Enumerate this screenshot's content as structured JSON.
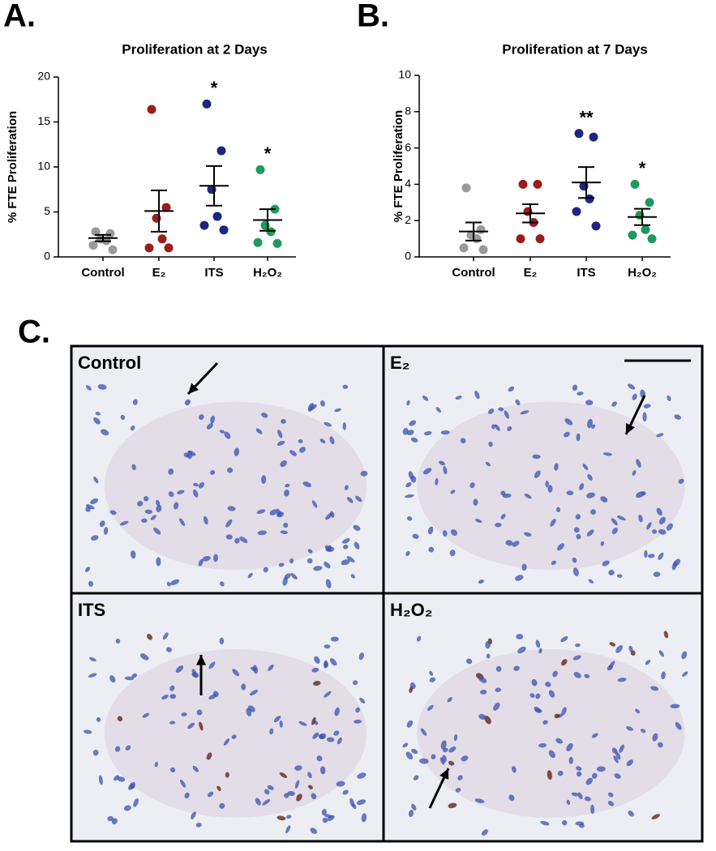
{
  "panel_labels": [
    "A.",
    "B.",
    "C."
  ],
  "chart_data": [
    {
      "type": "dot",
      "title": "Proliferation at 2 Days",
      "y_label": "% FTE Proliferation",
      "categories": [
        "Control",
        "E₂",
        "ITS",
        "H₂O₂"
      ],
      "colors": [
        "#9a9a9a",
        "#9b1c1c",
        "#1c2580",
        "#1e9a5c"
      ],
      "values": [
        [
          2.8,
          2.6,
          2.0,
          1.8,
          1.3,
          0.8
        ],
        [
          16.4,
          5.5,
          4.3,
          2.0,
          1.0,
          1.0
        ],
        [
          17.0,
          11.8,
          7.5,
          4.5,
          3.5,
          3.0
        ],
        [
          9.7,
          5.3,
          3.5,
          2.8,
          1.6,
          1.5
        ]
      ],
      "means": [
        2.1,
        5.1,
        7.9,
        4.1
      ],
      "sem": [
        0.35,
        2.3,
        2.2,
        1.2
      ],
      "significance": [
        null,
        null,
        "*",
        "*"
      ],
      "ylim": [
        0,
        20
      ],
      "yticks": [
        0,
        5,
        10,
        15,
        20
      ]
    },
    {
      "type": "dot",
      "title": "Proliferation at 7 Days",
      "y_label": "% FTE Proliferation",
      "categories": [
        "Control",
        "E₂",
        "ITS",
        "H₂O₂"
      ],
      "colors": [
        "#9a9a9a",
        "#9b1c1c",
        "#1c2580",
        "#1e9a5c"
      ],
      "values": [
        [
          3.8,
          1.5,
          1.2,
          1.0,
          0.5,
          0.4
        ],
        [
          4.0,
          4.0,
          2.5,
          1.9,
          1.0,
          1.0
        ],
        [
          6.8,
          6.6,
          3.9,
          3.2,
          2.5,
          1.7
        ],
        [
          4.0,
          3.0,
          2.3,
          1.5,
          1.2,
          1.0
        ]
      ],
      "means": [
        1.4,
        2.4,
        4.1,
        2.2
      ],
      "sem": [
        0.5,
        0.5,
        0.85,
        0.45
      ],
      "significance": [
        null,
        null,
        "**",
        "*"
      ],
      "ylim": [
        0,
        10
      ],
      "yticks": [
        0,
        2,
        4,
        6,
        8,
        10
      ]
    }
  ],
  "micrographs": {
    "panels": [
      {
        "label": "Control"
      },
      {
        "label": "E₂"
      },
      {
        "label": "ITS"
      },
      {
        "label": "H₂O₂"
      }
    ]
  }
}
